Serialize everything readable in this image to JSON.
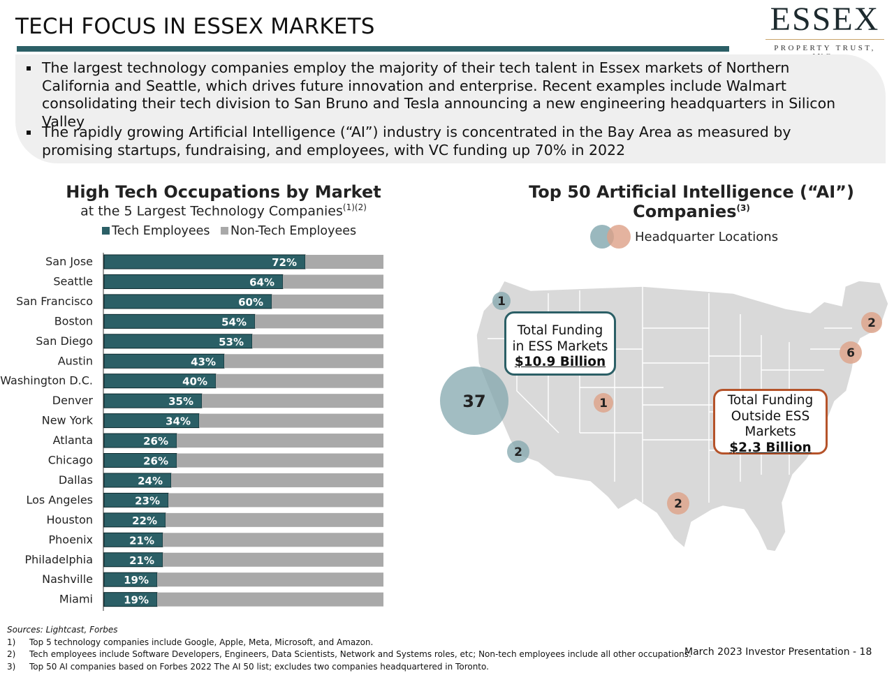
{
  "header": {
    "title": "TECH FOCUS IN ESSEX MARKETS",
    "logo_word": "ESSEX",
    "logo_sub": "PROPERTY TRUST, INC."
  },
  "bullets": [
    "The largest technology companies employ the majority of their tech talent in Essex markets of Northern California and Seattle, which drives future innovation and enterprise. Recent examples include Walmart consolidating their tech division to San Bruno and Tesla announcing a new engineering headquarters in Silicon Valley",
    "The rapidly growing Artificial Intelligence (“AI”) industry is concentrated in the Bay Area as measured by promising startups, fundraising, and employees, with VC funding up 70% in 2022"
  ],
  "chart_data": [
    {
      "type": "bar",
      "orientation": "horizontal",
      "stacked": true,
      "title": "High Tech Occupations by Market",
      "subtitle": "at the 5 Largest Technology Companies",
      "subtitle_sup": "(1)(2)",
      "categories": [
        "San Jose",
        "Seattle",
        "San Francisco",
        "Boston",
        "San Diego",
        "Austin",
        "Washington D.C.",
        "Denver",
        "New York",
        "Atlanta",
        "Chicago",
        "Dallas",
        "Los Angeles",
        "Houston",
        "Phoenix",
        "Philadelphia",
        "Nashville",
        "Miami"
      ],
      "series": [
        {
          "name": "Tech Employees",
          "color": "#2b5f66",
          "values": [
            72,
            64,
            60,
            54,
            53,
            43,
            40,
            35,
            34,
            26,
            26,
            24,
            23,
            22,
            21,
            21,
            19,
            19
          ]
        },
        {
          "name": "Non-Tech Employees",
          "color": "#a9a9a9",
          "values": [
            28,
            36,
            40,
            46,
            47,
            57,
            60,
            65,
            66,
            74,
            74,
            76,
            77,
            78,
            79,
            79,
            81,
            81
          ]
        }
      ],
      "data_labels": [
        "72%",
        "64%",
        "60%",
        "54%",
        "53%",
        "43%",
        "40%",
        "35%",
        "34%",
        "26%",
        "26%",
        "24%",
        "23%",
        "22%",
        "21%",
        "21%",
        "19%",
        "19%"
      ],
      "xlim": [
        0,
        100
      ],
      "legend": "top"
    },
    {
      "type": "map",
      "title": "Top 50 Artificial Intelligence (“AI”) Companies",
      "title_sup": "(3)",
      "legend_label": "Headquarter Locations",
      "points": [
        {
          "label": "1",
          "location": "Seattle",
          "group": "ESS",
          "value": 1
        },
        {
          "label": "37",
          "location": "San Francisco Bay Area",
          "group": "ESS",
          "value": 37
        },
        {
          "label": "2",
          "location": "Southern California",
          "group": "ESS",
          "value": 2
        },
        {
          "label": "1",
          "location": "Colorado",
          "group": "Outside ESS",
          "value": 1
        },
        {
          "label": "2",
          "location": "Texas",
          "group": "Outside ESS",
          "value": 2
        },
        {
          "label": "6",
          "location": "New York",
          "group": "Outside ESS",
          "value": 6
        },
        {
          "label": "2",
          "location": "Massachusetts",
          "group": "Outside ESS",
          "value": 2
        }
      ],
      "colors": {
        "ess": "#7ea3aa",
        "outside": "#dda48c",
        "land": "#d9d9d9",
        "border": "#ffffff"
      }
    }
  ],
  "funding": {
    "ess_line1": "Total Funding",
    "ess_line2": "in ESS Markets",
    "ess_amount": "$10.9 Billion",
    "out_line1": "Total Funding",
    "out_line2": "Outside ESS",
    "out_line3": "Markets",
    "out_amount": "$2.3 Billion"
  },
  "footer": {
    "sources": "Sources: Lightcast, Forbes",
    "notes": [
      {
        "n": "1)",
        "text": "Top 5 technology companies include Google, Apple, Meta, Microsoft, and Amazon."
      },
      {
        "n": "2)",
        "text": "Tech employees include Software Developers, Engineers, Data Scientists, Network and Systems roles, etc; Non-tech employees include all other occupations."
      },
      {
        "n": "3)",
        "text": "Top 50 AI companies based on Forbes 2022 The AI 50 list; excludes two companies headquartered in Toronto."
      }
    ],
    "presentation": "March 2023 Investor Presentation -  18"
  }
}
